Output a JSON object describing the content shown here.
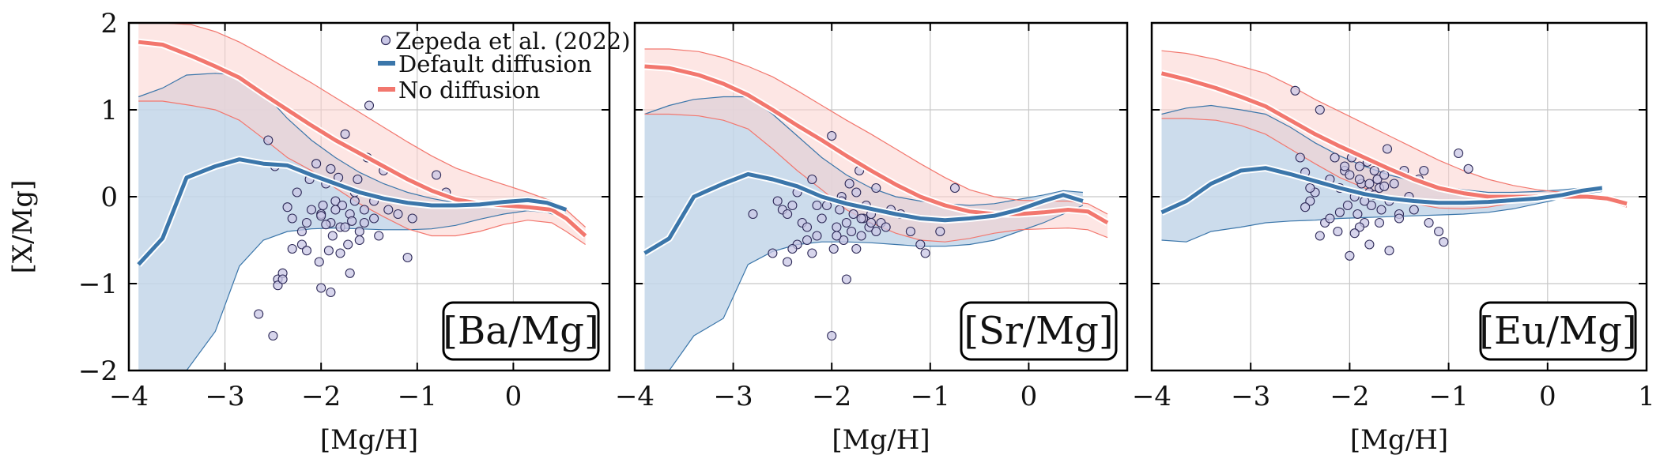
{
  "figure": {
    "ylabel": "[X/Mg]",
    "xlabel": "[Mg/H]",
    "colors": {
      "default": "#3b76aa",
      "default_band": "#c3d6e9",
      "no_diff": "#f2776e",
      "no_diff_band": "#fbd1ce",
      "obs_fill": "#c9c7e6",
      "obs_edge": "#2e2a58"
    },
    "legend": {
      "obs": "Zepeda et al. (2022)",
      "default": "Default diffusion",
      "no_diff": "No diffusion"
    }
  },
  "chart_data": [
    {
      "type": "line",
      "panel_label": "[Ba/Mg]",
      "xlabel": "[Mg/H]",
      "ylabel": "[X/Mg]",
      "xlim": [
        -4,
        1
      ],
      "ylim": [
        -2,
        2
      ],
      "xticks": [
        "−4",
        "−3",
        "−2",
        "−1",
        "0"
      ],
      "yticks": [
        "2",
        "1",
        "0",
        "−1",
        "−2"
      ],
      "grid": true,
      "legend_position": "top-right",
      "series": [
        {
          "name": "No diffusion",
          "x": [
            -3.9,
            -3.65,
            -3.35,
            -3.1,
            -2.85,
            -2.6,
            -2.35,
            -2.1,
            -1.85,
            -1.6,
            -1.35,
            -1.1,
            -0.85,
            -0.6,
            -0.35,
            -0.1,
            0.15,
            0.4,
            0.55,
            0.75
          ],
          "y": [
            1.78,
            1.75,
            1.62,
            1.5,
            1.37,
            1.18,
            1.0,
            0.82,
            0.65,
            0.5,
            0.35,
            0.2,
            0.07,
            -0.03,
            -0.08,
            -0.1,
            -0.12,
            -0.15,
            -0.25,
            -0.45
          ],
          "band_upper": [
            2.0,
            2.0,
            1.98,
            1.9,
            1.78,
            1.63,
            1.47,
            1.31,
            1.14,
            0.97,
            0.8,
            0.63,
            0.47,
            0.33,
            0.23,
            0.14,
            0.05,
            -0.05,
            -0.15,
            -0.35
          ],
          "band_lower": [
            1.1,
            1.1,
            1.05,
            1.0,
            0.88,
            0.67,
            0.45,
            0.3,
            0.1,
            -0.08,
            -0.23,
            -0.37,
            -0.45,
            -0.45,
            -0.4,
            -0.32,
            -0.27,
            -0.3,
            -0.4,
            -0.55
          ]
        },
        {
          "name": "Default diffusion",
          "x": [
            -3.9,
            -3.65,
            -3.4,
            -3.1,
            -2.85,
            -2.6,
            -2.35,
            -2.1,
            -1.85,
            -1.6,
            -1.35,
            -1.1,
            -0.85,
            -0.6,
            -0.35,
            -0.1,
            0.15,
            0.35,
            0.55
          ],
          "y": [
            -0.78,
            -0.48,
            0.22,
            0.35,
            0.43,
            0.38,
            0.36,
            0.25,
            0.15,
            0.05,
            -0.02,
            -0.07,
            -0.1,
            -0.1,
            -0.09,
            -0.06,
            -0.04,
            -0.07,
            -0.15
          ],
          "band_upper": [
            1.15,
            1.25,
            1.4,
            1.42,
            1.4,
            1.2,
            0.9,
            0.65,
            0.45,
            0.28,
            0.15,
            0.05,
            -0.02,
            -0.07,
            -0.08,
            -0.06,
            -0.03,
            -0.05,
            -0.12
          ],
          "band_lower": [
            -2.0,
            -2.0,
            -2.0,
            -1.55,
            -0.8,
            -0.5,
            -0.4,
            -0.37,
            -0.36,
            -0.37,
            -0.38,
            -0.38,
            -0.37,
            -0.33,
            -0.26,
            -0.2,
            -0.16,
            -0.18,
            -0.25
          ]
        }
      ],
      "observations": {
        "name": "Zepeda et al. (2022)",
        "x": [
          -2.55,
          -2.48,
          -2.45,
          -2.4,
          -2.35,
          -2.3,
          -2.25,
          -2.2,
          -2.15,
          -2.12,
          -2.1,
          -2.05,
          -2.02,
          -2.0,
          -1.98,
          -1.95,
          -1.92,
          -1.9,
          -1.88,
          -1.85,
          -1.82,
          -1.8,
          -1.78,
          -1.75,
          -1.72,
          -1.7,
          -1.68,
          -1.65,
          -1.62,
          -1.6,
          -1.55,
          -1.52,
          -1.5,
          -1.45,
          -1.4,
          -1.35,
          -1.3,
          -1.2,
          -1.1,
          -1.05,
          -0.8,
          -0.7,
          -2.65,
          -2.5,
          -2.2,
          -2.0,
          -1.9,
          -1.8,
          -1.7,
          -1.6,
          -1.55,
          -2.45,
          -1.95,
          -2.3,
          -1.85,
          -1.75,
          -2.15,
          -1.65,
          -2.0,
          -1.45,
          -2.4,
          -1.9
        ],
        "y": [
          0.65,
          0.35,
          -0.95,
          -0.88,
          -0.12,
          -0.25,
          0.05,
          -0.4,
          -0.3,
          0.2,
          -0.15,
          0.38,
          -0.75,
          -0.2,
          -0.1,
          0.15,
          -0.62,
          -0.3,
          -0.45,
          -0.05,
          0.22,
          -0.35,
          -0.1,
          0.72,
          -0.55,
          -0.2,
          -0.28,
          -0.05,
          0.2,
          -0.4,
          -0.15,
          0.45,
          1.05,
          -0.25,
          -0.45,
          0.3,
          -0.15,
          -0.2,
          -0.7,
          -0.25,
          0.25,
          0.05,
          -1.35,
          -1.6,
          -0.55,
          -1.05,
          -1.1,
          -0.65,
          -0.88,
          -0.5,
          -0.3,
          -1.02,
          -0.32,
          -0.6,
          -0.15,
          -0.35,
          -0.62,
          0.05,
          -0.22,
          -0.05,
          -0.95,
          0.32
        ]
      }
    },
    {
      "type": "line",
      "panel_label": "[Sr/Mg]",
      "xlabel": "[Mg/H]",
      "ylabel": "[X/Mg]",
      "xlim": [
        -4,
        1
      ],
      "ylim": [
        -2,
        2
      ],
      "xticks": [
        "−4",
        "−3",
        "−2",
        "−1",
        "0"
      ],
      "yticks": [
        "2",
        "1",
        "0",
        "−1",
        "−2"
      ],
      "grid": true,
      "series": [
        {
          "name": "No diffusion",
          "x": [
            -3.9,
            -3.65,
            -3.35,
            -3.1,
            -2.85,
            -2.6,
            -2.35,
            -2.1,
            -1.85,
            -1.6,
            -1.35,
            -1.1,
            -0.85,
            -0.6,
            -0.35,
            -0.1,
            0.15,
            0.4,
            0.6,
            0.8
          ],
          "y": [
            1.5,
            1.48,
            1.4,
            1.3,
            1.17,
            1.0,
            0.82,
            0.65,
            0.47,
            0.3,
            0.14,
            0.0,
            -0.1,
            -0.17,
            -0.2,
            -0.2,
            -0.18,
            -0.15,
            -0.17,
            -0.3
          ],
          "band_upper": [
            1.7,
            1.7,
            1.67,
            1.6,
            1.5,
            1.38,
            1.22,
            1.05,
            0.88,
            0.72,
            0.55,
            0.38,
            0.22,
            0.08,
            0.0,
            -0.04,
            -0.05,
            -0.05,
            -0.08,
            -0.2
          ],
          "band_lower": [
            0.95,
            0.95,
            0.93,
            0.88,
            0.78,
            0.55,
            0.3,
            0.08,
            -0.15,
            -0.3,
            -0.42,
            -0.5,
            -0.52,
            -0.48,
            -0.42,
            -0.38,
            -0.37,
            -0.36,
            -0.38,
            -0.47
          ]
        },
        {
          "name": "Default diffusion",
          "x": [
            -3.9,
            -3.65,
            -3.4,
            -3.1,
            -2.85,
            -2.6,
            -2.35,
            -2.1,
            -1.85,
            -1.6,
            -1.35,
            -1.1,
            -0.85,
            -0.6,
            -0.35,
            -0.1,
            0.15,
            0.35,
            0.55
          ],
          "y": [
            -0.65,
            -0.48,
            0.0,
            0.15,
            0.26,
            0.2,
            0.12,
            0.0,
            -0.08,
            -0.14,
            -0.2,
            -0.25,
            -0.27,
            -0.25,
            -0.22,
            -0.15,
            -0.05,
            0.02,
            -0.05
          ],
          "band_upper": [
            0.95,
            1.05,
            1.12,
            1.15,
            1.15,
            0.95,
            0.7,
            0.45,
            0.25,
            0.1,
            0.0,
            -0.05,
            -0.08,
            -0.1,
            -0.08,
            -0.03,
            0.02,
            0.07,
            0.05
          ],
          "band_lower": [
            -2.0,
            -2.0,
            -1.6,
            -1.4,
            -0.78,
            -0.63,
            -0.55,
            -0.52,
            -0.52,
            -0.53,
            -0.55,
            -0.57,
            -0.57,
            -0.55,
            -0.5,
            -0.4,
            -0.3,
            -0.2,
            -0.1
          ]
        }
      ],
      "observations": {
        "name": "Zepeda et al. (2022)",
        "x": [
          -2.8,
          -2.6,
          -2.55,
          -2.5,
          -2.45,
          -2.4,
          -2.35,
          -2.3,
          -2.25,
          -2.2,
          -2.15,
          -2.1,
          -2.05,
          -2.0,
          -1.98,
          -1.95,
          -1.92,
          -1.9,
          -1.88,
          -1.85,
          -1.82,
          -1.8,
          -1.78,
          -1.75,
          -1.72,
          -1.7,
          -1.68,
          -1.65,
          -1.62,
          -1.6,
          -1.55,
          -1.5,
          -1.45,
          -1.4,
          -1.3,
          -1.2,
          -1.1,
          -1.05,
          -0.9,
          -0.75,
          -2.0,
          -1.85,
          -2.35,
          -2.2,
          -1.95,
          -1.75,
          -1.6,
          -2.45,
          -2.25,
          -1.9,
          -2.15,
          -2.4,
          -1.7,
          -1.55
        ],
        "y": [
          -0.2,
          -0.65,
          -0.05,
          -0.15,
          -0.2,
          -0.1,
          0.05,
          -0.3,
          -0.35,
          0.2,
          -0.45,
          -0.25,
          -0.1,
          0.7,
          -0.6,
          -0.35,
          -0.15,
          0.0,
          -0.5,
          -0.3,
          0.15,
          -0.4,
          -0.2,
          0.05,
          0.3,
          -0.45,
          -0.25,
          -0.1,
          -0.35,
          -0.2,
          0.1,
          -0.3,
          -0.35,
          -0.15,
          -0.2,
          -0.4,
          -0.55,
          -0.65,
          -0.4,
          0.1,
          -1.6,
          -0.95,
          -0.55,
          -0.65,
          -0.45,
          -0.6,
          -0.3,
          -0.75,
          -0.5,
          -0.05,
          -0.1,
          -0.6,
          -0.25,
          -0.4
        ]
      }
    },
    {
      "type": "line",
      "panel_label": "[Eu/Mg]",
      "xlabel": "[Mg/H]",
      "ylabel": "[X/Mg]",
      "xlim": [
        -4,
        1
      ],
      "ylim": [
        -2,
        2
      ],
      "xticks": [
        "−4",
        "−3",
        "−2",
        "−1",
        "0",
        "1"
      ],
      "yticks": [
        "2",
        "1",
        "0",
        "−1",
        "−2"
      ],
      "grid": true,
      "series": [
        {
          "name": "No diffusion",
          "x": [
            -3.9,
            -3.65,
            -3.35,
            -3.1,
            -2.85,
            -2.6,
            -2.35,
            -2.1,
            -1.85,
            -1.6,
            -1.35,
            -1.1,
            -0.85,
            -0.6,
            -0.35,
            -0.1,
            0.15,
            0.4,
            0.6,
            0.8
          ],
          "y": [
            1.42,
            1.35,
            1.25,
            1.15,
            1.04,
            0.88,
            0.72,
            0.58,
            0.45,
            0.32,
            0.2,
            0.1,
            0.04,
            0.0,
            0.0,
            0.0,
            0.0,
            0.0,
            -0.02,
            -0.08
          ],
          "band_upper": [
            1.68,
            1.65,
            1.58,
            1.5,
            1.42,
            1.28,
            1.12,
            0.98,
            0.84,
            0.7,
            0.56,
            0.42,
            0.3,
            0.2,
            0.13,
            0.08,
            0.05,
            0.03,
            0.0,
            -0.05
          ],
          "band_lower": [
            0.9,
            0.9,
            0.88,
            0.82,
            0.72,
            0.55,
            0.38,
            0.22,
            0.1,
            0.0,
            -0.08,
            -0.13,
            -0.14,
            -0.12,
            -0.07,
            -0.03,
            -0.02,
            -0.03,
            -0.05,
            -0.12
          ]
        },
        {
          "name": "Default diffusion",
          "x": [
            -3.9,
            -3.65,
            -3.4,
            -3.1,
            -2.85,
            -2.6,
            -2.35,
            -2.1,
            -1.85,
            -1.6,
            -1.35,
            -1.1,
            -0.85,
            -0.6,
            -0.35,
            -0.1,
            0.15,
            0.35,
            0.55
          ],
          "y": [
            -0.18,
            -0.05,
            0.15,
            0.3,
            0.33,
            0.26,
            0.18,
            0.1,
            0.03,
            -0.02,
            -0.05,
            -0.07,
            -0.07,
            -0.06,
            -0.04,
            -0.02,
            0.02,
            0.07,
            0.1
          ],
          "band_upper": [
            0.95,
            1.02,
            1.05,
            1.0,
            0.95,
            0.8,
            0.62,
            0.47,
            0.35,
            0.25,
            0.18,
            0.12,
            0.08,
            0.05,
            0.05,
            0.06,
            0.08,
            0.1,
            0.12
          ],
          "band_lower": [
            -0.5,
            -0.52,
            -0.4,
            -0.35,
            -0.3,
            -0.28,
            -0.27,
            -0.25,
            -0.24,
            -0.23,
            -0.22,
            -0.21,
            -0.2,
            -0.18,
            -0.14,
            -0.08,
            -0.02,
            0.03,
            0.06
          ]
        }
      ],
      "observations": {
        "name": "Zepeda et al. (2022)",
        "x": [
          -2.55,
          -2.5,
          -2.45,
          -2.4,
          -2.35,
          -2.3,
          -2.25,
          -2.2,
          -2.15,
          -2.12,
          -2.1,
          -2.05,
          -2.02,
          -2.0,
          -1.98,
          -1.95,
          -1.92,
          -1.9,
          -1.88,
          -1.85,
          -1.82,
          -1.8,
          -1.78,
          -1.75,
          -1.72,
          -1.7,
          -1.68,
          -1.65,
          -1.62,
          -1.6,
          -1.55,
          -1.5,
          -1.45,
          -1.4,
          -1.35,
          -1.3,
          -1.25,
          -1.2,
          -1.1,
          -1.05,
          -0.9,
          -0.8,
          -2.3,
          -2.0,
          -1.9,
          -1.8,
          -1.7,
          -1.6,
          -2.45,
          -1.95,
          -2.2,
          -1.85,
          -1.75,
          -2.1,
          -1.65,
          -1.5,
          -2.4,
          -1.9,
          -2.05,
          -1.8
        ],
        "y": [
          1.22,
          0.45,
          0.28,
          -0.05,
          0.05,
          1.0,
          -0.3,
          0.2,
          0.45,
          -0.4,
          0.1,
          0.3,
          -0.1,
          0.25,
          0.45,
          0.0,
          -0.2,
          0.35,
          0.15,
          -0.3,
          0.4,
          0.05,
          -0.1,
          0.3,
          0.2,
          0.1,
          -0.15,
          0.25,
          0.55,
          -0.05,
          0.15,
          -0.2,
          0.3,
          0.0,
          -0.15,
          0.2,
          0.3,
          -0.3,
          -0.4,
          -0.52,
          0.5,
          0.32,
          -0.45,
          -0.68,
          -0.35,
          -0.55,
          -0.3,
          -0.62,
          -0.12,
          -0.42,
          -0.25,
          -0.05,
          0.02,
          -0.18,
          0.12,
          -0.25,
          0.1,
          0.2,
          0.35,
          0.15
        ]
      }
    }
  ]
}
